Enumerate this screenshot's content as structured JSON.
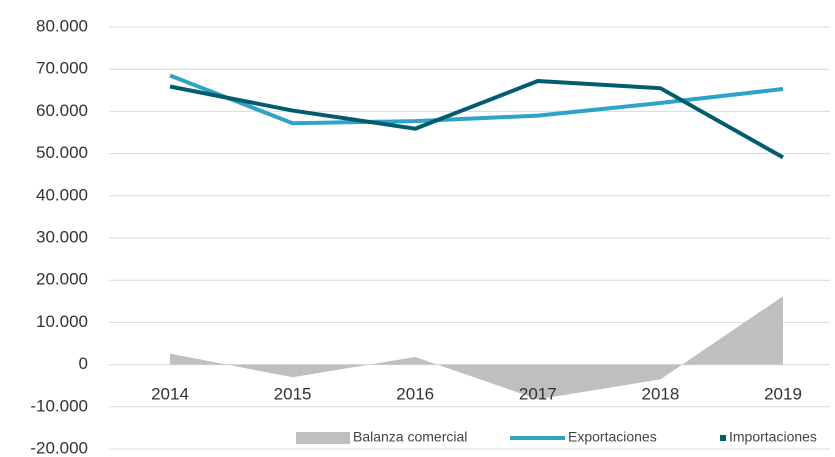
{
  "chart_data": {
    "type": "line",
    "categories": [
      "2014",
      "2015",
      "2016",
      "2017",
      "2018",
      "2019"
    ],
    "series": [
      {
        "name": "Balanza comercial",
        "type": "area",
        "color": "#bfbfbf",
        "values": [
          2600,
          -3000,
          1800,
          -8200,
          -3500,
          16200
        ]
      },
      {
        "name": "Exportaciones",
        "type": "line",
        "color": "#2ea3c7",
        "values": [
          68500,
          57200,
          57700,
          59000,
          62000,
          65300
        ]
      },
      {
        "name": "Importaciones",
        "type": "line",
        "color": "#005c6e",
        "values": [
          65900,
          60200,
          55900,
          67200,
          65500,
          49100
        ]
      }
    ],
    "ylim": [
      -20000,
      80000
    ],
    "yticks": [
      {
        "value": -20000,
        "label": "-20.000"
      },
      {
        "value": -10000,
        "label": "-10.000"
      },
      0,
      {
        "value": 10000,
        "label": "10.000"
      },
      {
        "value": 20000,
        "label": "20.000"
      },
      {
        "value": 30000,
        "label": "30.000"
      },
      {
        "value": 40000,
        "label": "40.000"
      },
      {
        "value": 50000,
        "label": "50.000"
      },
      {
        "value": 60000,
        "label": "60.000"
      },
      {
        "value": 70000,
        "label": "70.000"
      },
      {
        "value": 80000,
        "label": "80.000"
      }
    ],
    "grid": true,
    "legend": "bottom"
  }
}
